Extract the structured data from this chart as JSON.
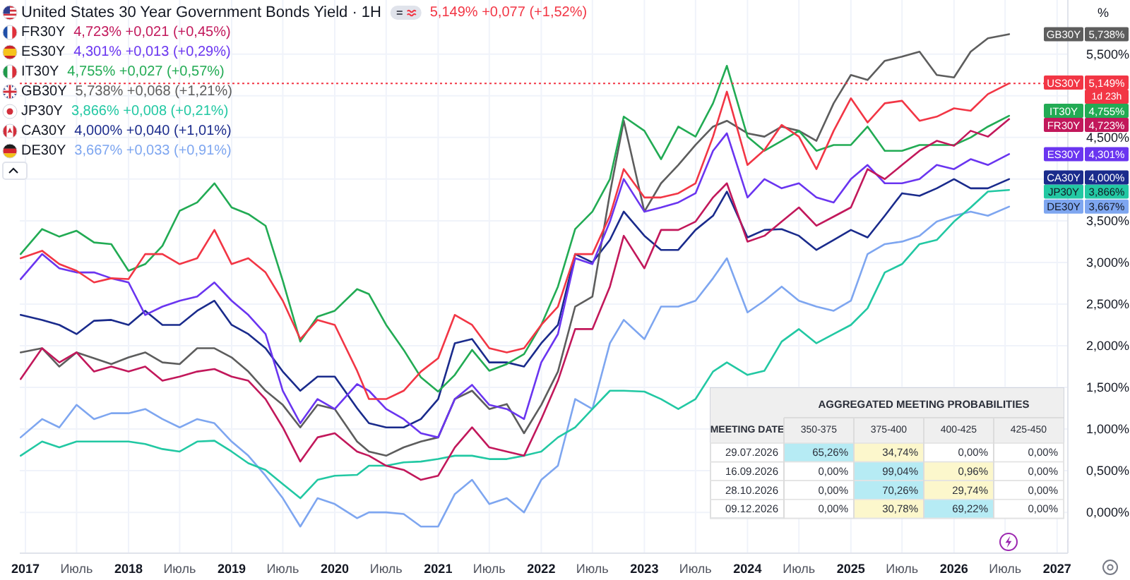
{
  "chart_data": [
    {
      "type": "line",
      "title": "United States 30 Year Government Bonds Yield · 1H",
      "ylabel": "%",
      "x": [
        "2016-12-15",
        "2017-03-01",
        "2017-05-01",
        "2017-07-01",
        "2017-09-01",
        "2017-11-01",
        "2018-01-01",
        "2018-03-01",
        "2018-05-01",
        "2018-07-01",
        "2018-09-01",
        "2018-11-01",
        "2019-01-01",
        "2019-03-01",
        "2019-05-01",
        "2019-07-01",
        "2019-09-01",
        "2019-11-01",
        "2020-01-01",
        "2020-03-20",
        "2020-05-01",
        "2020-07-01",
        "2020-09-01",
        "2020-11-01",
        "2021-01-01",
        "2021-03-01",
        "2021-05-01",
        "2021-07-01",
        "2021-09-01",
        "2021-11-01",
        "2022-01-01",
        "2022-03-01",
        "2022-05-01",
        "2022-07-01",
        "2022-09-01",
        "2022-10-20",
        "2023-01-01",
        "2023-03-01",
        "2023-05-01",
        "2023-07-01",
        "2023-09-01",
        "2023-10-20",
        "2024-01-01",
        "2024-03-01",
        "2024-05-01",
        "2024-07-01",
        "2024-09-01",
        "2024-11-01",
        "2025-01-01",
        "2025-03-01",
        "2025-05-01",
        "2025-07-01",
        "2025-09-01",
        "2025-11-01",
        "2026-01-01",
        "2026-03-01",
        "2026-05-01",
        "2026-07-15"
      ],
      "series": [
        {
          "name": "US30Y",
          "color": "#f23645",
          "values": [
            3.05,
            3.14,
            2.98,
            2.9,
            2.76,
            2.81,
            2.8,
            3.1,
            3.1,
            2.98,
            3.05,
            3.39,
            2.98,
            3.05,
            2.88,
            2.54,
            2.08,
            2.31,
            2.25,
            1.7,
            1.36,
            1.36,
            1.46,
            1.69,
            1.85,
            2.37,
            2.25,
            1.97,
            1.92,
            1.97,
            2.25,
            2.47,
            3.1,
            3.1,
            3.56,
            4.12,
            3.78,
            3.78,
            3.83,
            3.95,
            4.51,
            5.05,
            4.17,
            4.35,
            4.65,
            4.51,
            4.12,
            4.58,
            4.97,
            4.68,
            4.91,
            4.94,
            4.7,
            4.75,
            4.85,
            4.82,
            5.02,
            5.15
          ]
        },
        {
          "name": "FR30Y",
          "color": "#c2185b",
          "values": [
            1.6,
            1.97,
            1.8,
            1.92,
            1.69,
            1.75,
            1.69,
            1.75,
            1.58,
            1.63,
            1.69,
            1.72,
            1.63,
            1.58,
            1.36,
            1.02,
            0.61,
            0.9,
            0.95,
            0.73,
            0.68,
            0.56,
            0.51,
            0.39,
            0.44,
            0.78,
            1.02,
            0.78,
            0.73,
            0.68,
            1.12,
            1.58,
            2.2,
            2.2,
            2.71,
            3.32,
            2.93,
            3.39,
            3.39,
            3.49,
            3.78,
            3.95,
            3.25,
            3.32,
            3.49,
            3.66,
            3.44,
            3.55,
            3.66,
            4.12,
            4.0,
            4.17,
            4.34,
            4.46,
            4.4,
            4.58,
            4.51,
            4.72
          ]
        },
        {
          "name": "ES30Y",
          "color": "#6a35f0",
          "values": [
            2.8,
            3.1,
            2.93,
            2.88,
            2.88,
            2.81,
            2.76,
            2.37,
            2.47,
            2.54,
            2.59,
            2.76,
            2.54,
            2.37,
            2.14,
            1.46,
            1.07,
            1.36,
            1.24,
            1.54,
            1.46,
            1.24,
            1.12,
            0.95,
            0.9,
            1.36,
            1.53,
            1.29,
            1.24,
            1.12,
            1.8,
            2.14,
            3.05,
            2.98,
            3.49,
            4.0,
            3.61,
            3.66,
            3.72,
            3.83,
            4.34,
            4.55,
            3.78,
            4.0,
            3.89,
            3.95,
            3.78,
            3.72,
            4.0,
            4.17,
            3.95,
            3.95,
            4.0,
            4.17,
            4.12,
            4.24,
            4.17,
            4.3
          ]
        },
        {
          "name": "IT30Y",
          "color": "#22ab54",
          "values": [
            3.1,
            3.4,
            3.31,
            3.38,
            3.24,
            3.22,
            2.9,
            2.98,
            3.2,
            3.62,
            3.72,
            3.95,
            3.66,
            3.58,
            3.44,
            2.78,
            2.05,
            2.35,
            2.42,
            2.68,
            2.62,
            2.25,
            1.95,
            1.62,
            1.45,
            1.65,
            1.95,
            1.7,
            1.78,
            1.9,
            2.25,
            2.71,
            3.4,
            3.61,
            4.0,
            4.75,
            4.58,
            4.24,
            4.63,
            4.51,
            4.91,
            5.36,
            4.51,
            4.34,
            4.46,
            4.58,
            4.34,
            4.41,
            4.41,
            4.63,
            4.34,
            4.34,
            4.41,
            4.41,
            4.41,
            4.5,
            4.63,
            4.76
          ]
        },
        {
          "name": "GB30Y",
          "color": "#5d5d5d",
          "values": [
            1.92,
            1.97,
            1.75,
            1.92,
            1.85,
            1.78,
            1.86,
            1.92,
            1.8,
            1.78,
            1.97,
            1.97,
            1.86,
            1.69,
            1.46,
            1.29,
            1.02,
            1.29,
            1.24,
            0.85,
            0.73,
            0.68,
            0.78,
            0.85,
            0.9,
            1.36,
            1.46,
            1.24,
            1.3,
            0.95,
            1.29,
            1.69,
            2.47,
            2.59,
            3.83,
            4.7,
            3.61,
            3.95,
            4.17,
            4.41,
            4.63,
            4.7,
            4.55,
            4.51,
            4.63,
            4.58,
            4.46,
            4.91,
            5.25,
            5.19,
            5.42,
            5.47,
            5.53,
            5.25,
            5.22,
            5.53,
            5.69,
            5.74
          ]
        },
        {
          "name": "JP30Y",
          "color": "#22c8a3",
          "values": [
            0.68,
            0.85,
            0.78,
            0.85,
            0.85,
            0.85,
            0.85,
            0.82,
            0.76,
            0.73,
            0.85,
            0.86,
            0.73,
            0.59,
            0.51,
            0.34,
            0.17,
            0.39,
            0.44,
            0.45,
            0.56,
            0.56,
            0.6,
            0.61,
            0.64,
            0.68,
            0.68,
            0.64,
            0.64,
            0.68,
            0.73,
            0.9,
            1.02,
            1.24,
            1.46,
            1.46,
            1.45,
            1.36,
            1.24,
            1.36,
            1.69,
            1.8,
            1.65,
            1.7,
            2.05,
            2.2,
            2.03,
            2.14,
            2.25,
            2.45,
            2.88,
            2.98,
            3.22,
            3.27,
            3.49,
            3.66,
            3.85,
            3.87
          ]
        },
        {
          "name": "CA30Y",
          "color": "#1a2b8c",
          "values": [
            2.37,
            2.31,
            2.25,
            2.14,
            2.3,
            2.31,
            2.25,
            2.42,
            2.25,
            2.25,
            2.42,
            2.54,
            2.25,
            2.14,
            1.97,
            1.69,
            1.46,
            1.63,
            1.63,
            1.25,
            1.07,
            1.02,
            1.02,
            1.12,
            1.36,
            2.03,
            2.08,
            1.8,
            1.8,
            1.75,
            2.03,
            2.25,
            3.1,
            3.0,
            3.27,
            3.61,
            3.32,
            3.15,
            3.15,
            3.39,
            3.56,
            3.85,
            3.3,
            3.39,
            3.4,
            3.32,
            3.15,
            3.27,
            3.39,
            3.3,
            3.56,
            3.83,
            3.8,
            3.89,
            4.0,
            3.89,
            3.89,
            4.0
          ]
        },
        {
          "name": "DE30Y",
          "color": "#7ea6f0",
          "values": [
            0.9,
            1.12,
            1.02,
            1.29,
            1.12,
            1.19,
            1.19,
            1.24,
            1.12,
            1.02,
            1.12,
            1.07,
            0.85,
            0.68,
            0.44,
            0.17,
            -0.17,
            0.17,
            0.1,
            -0.07,
            0.0,
            0.0,
            -0.02,
            -0.17,
            -0.17,
            0.22,
            0.39,
            0.1,
            0.17,
            0.0,
            0.39,
            0.56,
            1.36,
            1.24,
            2.03,
            2.31,
            2.08,
            2.47,
            2.47,
            2.54,
            2.81,
            3.05,
            2.4,
            2.54,
            2.71,
            2.54,
            2.47,
            2.42,
            2.54,
            3.1,
            3.22,
            3.25,
            3.32,
            3.49,
            3.56,
            3.61,
            3.56,
            3.67
          ]
        }
      ],
      "xlim": [
        "2016-12-12",
        "2027-02-08"
      ],
      "xticks": [
        {
          "value": "2017-01-01",
          "label": "2017"
        },
        {
          "value": "2017-07-01",
          "label": "Июль"
        },
        {
          "value": "2018-01-01",
          "label": "2018"
        },
        {
          "value": "2018-07-01",
          "label": "Июль"
        },
        {
          "value": "2019-01-01",
          "label": "2019"
        },
        {
          "value": "2019-07-01",
          "label": "Июль"
        },
        {
          "value": "2020-01-01",
          "label": "2020"
        },
        {
          "value": "2020-07-01",
          "label": "Июль"
        },
        {
          "value": "2021-01-01",
          "label": "2021"
        },
        {
          "value": "2021-07-01",
          "label": "Июль"
        },
        {
          "value": "2022-01-01",
          "label": "2022"
        },
        {
          "value": "2022-07-01",
          "label": "Июль"
        },
        {
          "value": "2023-01-01",
          "label": "2023"
        },
        {
          "value": "2023-07-01",
          "label": "Июль"
        },
        {
          "value": "2024-01-01",
          "label": "2024"
        },
        {
          "value": "2024-07-01",
          "label": "Июль"
        },
        {
          "value": "2025-01-01",
          "label": "2025"
        },
        {
          "value": "2025-07-01",
          "label": "Июль"
        },
        {
          "value": "2026-01-01",
          "label": "2026"
        },
        {
          "value": "2026-07-01",
          "label": "Июль"
        },
        {
          "value": "2027-01-01",
          "label": "2027"
        }
      ],
      "ylim": [
        -0.49,
        6.15
      ],
      "yticks": [
        {
          "value": 0,
          "label": "0,000%"
        },
        {
          "value": 0.5,
          "label": "0,500%"
        },
        {
          "value": 1,
          "label": "1,000%"
        },
        {
          "value": 1.5,
          "label": "1,500%"
        },
        {
          "value": 2,
          "label": "2,000%"
        },
        {
          "value": 2.5,
          "label": "2,500%"
        },
        {
          "value": 3,
          "label": "3,000%"
        },
        {
          "value": 3.5,
          "label": "3,500%"
        },
        {
          "value": 4,
          "label": null
        },
        {
          "value": 4.5,
          "label": "4,500%"
        },
        {
          "value": 5,
          "label": null
        },
        {
          "value": 5.5,
          "label": "5,500%"
        }
      ],
      "grid": true,
      "legend": "top right",
      "annotations": [
        "5,149% +0,077 (+1,52%)",
        "4,723% +0,021 (+0,45%)",
        "4,301% +0,013 (+0,29%)",
        "4,755% +0,027 (+0,57%)",
        "5,738% +0,068 (+1,21%)",
        "3,866% +0,008 (+0,21%)",
        "4,000% +0,040 (+1,01%)",
        "3,667% +0,033 (+0,91%)",
        "5,149%",
        "4,723%",
        "4,301%",
        "4,755%",
        "5,738%",
        "3,866%",
        "4,000%",
        "3,667%",
        "1d 23h"
      ],
      "ref_lines": [
        {
          "axis": "y",
          "value": 5.149,
          "color": "#f23645",
          "line_style": "dotted"
        }
      ]
    },
    {
      "type": "heatmap",
      "title": "AGGREGATED MEETING PROBABILITIES",
      "ylabel": "MEETING DATE",
      "categories": [
        "350-375",
        "375-400",
        "400-425",
        "425-450"
      ],
      "y_categories": [
        "29.07.2026",
        "16.09.2026",
        "28.10.2026",
        "09.12.2026"
      ],
      "cells": [
        [
          65.26,
          34.74,
          0,
          0
        ],
        [
          0,
          99.04,
          0.96,
          0
        ],
        [
          0,
          70.26,
          29.74,
          0
        ],
        [
          0,
          30.78,
          69.22,
          0
        ]
      ],
      "cell_labels": [
        [
          "65,26%",
          "34,74%",
          "0,00%",
          "0,00%"
        ],
        [
          "0,00%",
          "99,04%",
          "0,96%",
          "0,00%"
        ],
        [
          "0,00%",
          "70,26%",
          "29,74%",
          "0,00%"
        ],
        [
          "0,00%",
          "30,78%",
          "69,22%",
          "0,00%"
        ]
      ]
    }
  ]
}
